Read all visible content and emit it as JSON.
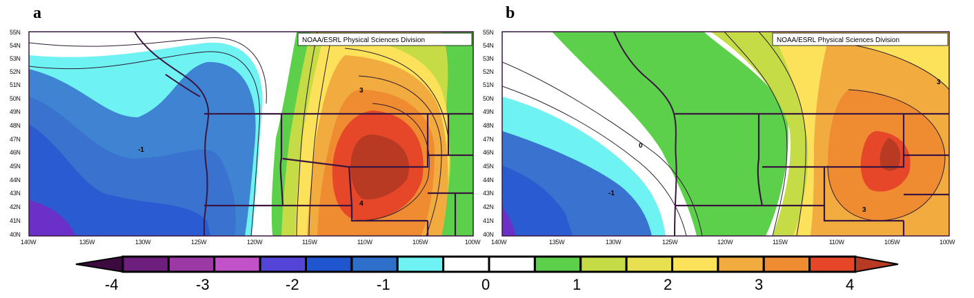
{
  "panels": [
    {
      "letter": "a",
      "credit": "NOAA/ESRL Physical Sciences Division",
      "y_ticks": [
        "55N",
        "54N",
        "53N",
        "52N",
        "51N",
        "50N",
        "49N",
        "48N",
        "47N",
        "46N",
        "45N",
        "44N",
        "43N",
        "42N",
        "41N",
        "40N"
      ],
      "x_ticks": [
        "140W",
        "135W",
        "130W",
        "125W",
        "120W",
        "115W",
        "110W",
        "105W",
        "100W"
      ],
      "contour_labels": [
        "-1",
        "3",
        "4"
      ]
    },
    {
      "letter": "b",
      "credit": "NOAA/ESRL Physical Sciences Division",
      "y_ticks": [
        "55N",
        "54N",
        "53N",
        "52N",
        "51N",
        "50N",
        "49N",
        "48N",
        "47N",
        "46N",
        "45N",
        "44N",
        "43N",
        "42N",
        "41N",
        "40N"
      ],
      "x_ticks": [
        "140W",
        "135W",
        "130W",
        "125W",
        "120W",
        "115W",
        "110W",
        "105W",
        "100W"
      ],
      "contour_labels": [
        "0",
        "-1",
        "3",
        "3"
      ]
    }
  ],
  "colorbar": {
    "labels": [
      "-4",
      "-3",
      "-2",
      "-1",
      "0",
      "1",
      "2",
      "3",
      "4"
    ],
    "colors": [
      "#3d0a3f",
      "#6e1f7d",
      "#9b3aa5",
      "#c252c8",
      "#5544d8",
      "#1f56d0",
      "#2f6fcc",
      "#6ef2f2",
      "#ffffff",
      "#ffffff",
      "#5cd04a",
      "#c6dc46",
      "#e8e050",
      "#fbe25a",
      "#f2ab3e",
      "#ef8c32",
      "#e54728",
      "#b83a22"
    ]
  },
  "field_colors": {
    "deep_purple": "#6a30c8",
    "dark_blue": "#2a5bd0",
    "mid_blue": "#3a72d0",
    "light_blue": "#3f84d3",
    "cyan": "#6ef2f2",
    "white": "#ffffff",
    "green": "#5cd04a",
    "yellow_green": "#c6dc46",
    "yellow": "#fbe25a",
    "light_orange": "#f2ab3e",
    "orange": "#ef8c32",
    "red": "#e54728",
    "dark_red": "#b83a22",
    "coast": "#3a1540"
  }
}
